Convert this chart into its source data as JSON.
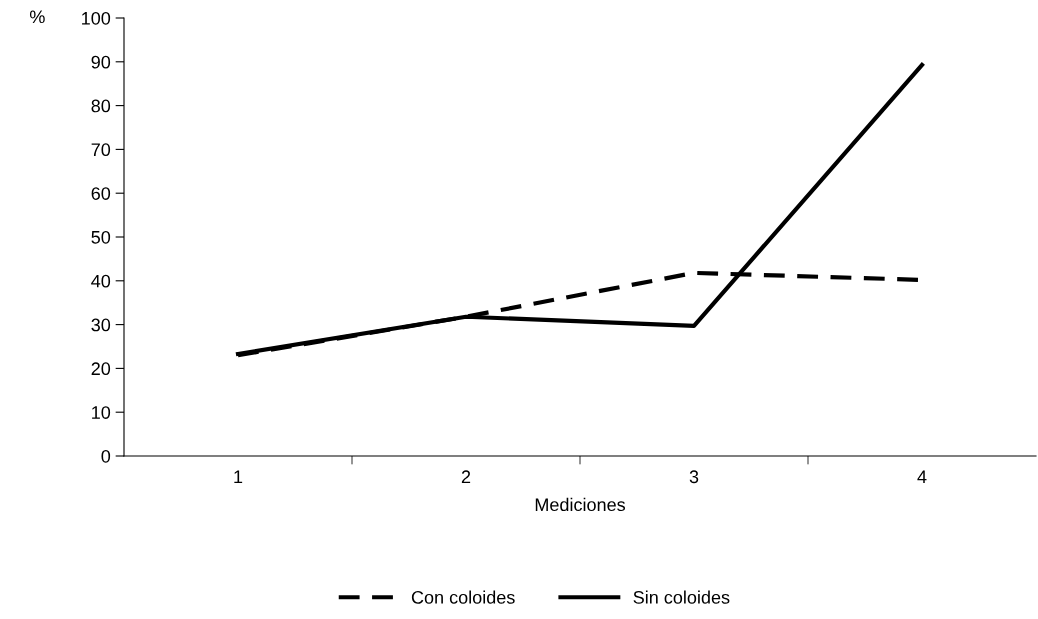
{
  "chart_data": {
    "type": "line",
    "xlabel": "Mediciones",
    "ylabel": "%",
    "categories": [
      "1",
      "2",
      "3",
      "4"
    ],
    "series": [
      {
        "name": "Con coloides",
        "color": "#000000",
        "line_style": "dashed",
        "values": [
          23,
          31.8,
          41.8,
          40.2
        ]
      },
      {
        "name": "Sin coloides",
        "color": "#000000",
        "line_style": "solid",
        "values": [
          23.3,
          31.8,
          29.7,
          89.3
        ]
      }
    ],
    "ylim": [
      0,
      100
    ],
    "yticks": [
      0,
      10,
      20,
      30,
      40,
      50,
      60,
      70,
      80,
      90,
      100
    ],
    "grid": false,
    "legend": "bottom",
    "marker": "none"
  }
}
